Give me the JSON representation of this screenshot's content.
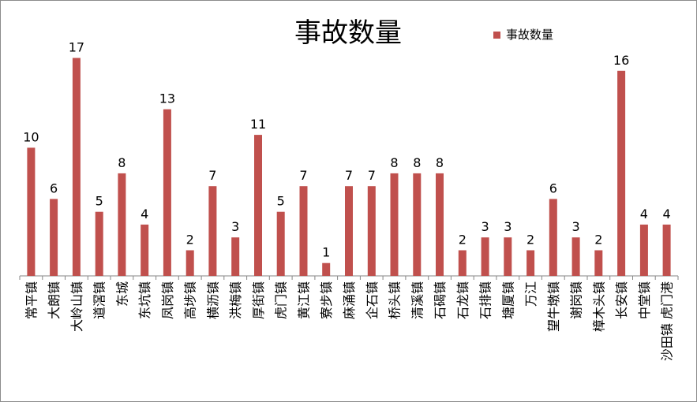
{
  "chart_data": {
    "type": "bar",
    "title": "事故数量",
    "legend": "事故数量",
    "legend_position": "top-right",
    "grid": false,
    "colors": {
      "bar": "#c0504d",
      "axis": "#868686"
    },
    "ylim": [
      0,
      19
    ],
    "categories": [
      "常平镇",
      "大朗镇",
      "大岭山镇",
      "道滘镇",
      "东城",
      "东坑镇",
      "凤岗镇",
      "高埗镇",
      "横沥镇",
      "洪梅镇",
      "厚街镇",
      "虎门镇",
      "黄江镇",
      "寮步镇",
      "麻涌镇",
      "企石镇",
      "桥头镇",
      "清溪镇",
      "石碣镇",
      "石龙镇",
      "石排镇",
      "塘厦镇",
      "万江",
      "望牛墩镇",
      "谢岗镇",
      "樟木头镇",
      "长安镇",
      "中堂镇",
      "沙田镇 虎门港"
    ],
    "series": [
      {
        "name": "事故数量",
        "values": [
          10,
          6,
          17,
          5,
          8,
          4,
          13,
          2,
          7,
          3,
          11,
          5,
          7,
          1,
          7,
          7,
          8,
          8,
          8,
          2,
          3,
          3,
          2,
          6,
          3,
          2,
          16,
          4,
          4
        ]
      }
    ]
  }
}
